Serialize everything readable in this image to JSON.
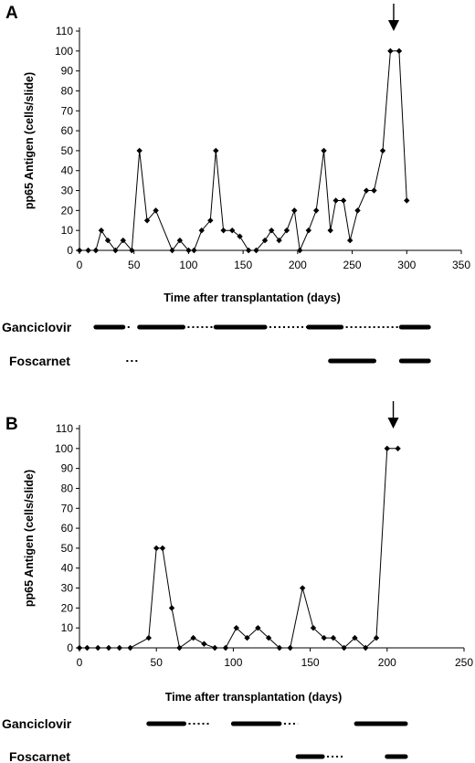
{
  "chart_data": [
    {
      "type": "line",
      "panel_label": "A",
      "xlabel": "Time after transplantation (days)",
      "ylabel": "pp65 Antigen  (cells/slide)",
      "xlim": [
        0,
        350
      ],
      "ylim": [
        0,
        110
      ],
      "x_ticks": [
        0,
        50,
        100,
        150,
        200,
        250,
        300,
        350
      ],
      "y_ticks": [
        0,
        10,
        20,
        30,
        40,
        50,
        60,
        70,
        80,
        90,
        100,
        110
      ],
      "series": [
        {
          "x": [
            0,
            8,
            15,
            20,
            26,
            33,
            40,
            48,
            55,
            62,
            70,
            85,
            92,
            100,
            105,
            112,
            120,
            125,
            132,
            140,
            147,
            155,
            162,
            170,
            176,
            183,
            190,
            197,
            202,
            210,
            217,
            224,
            230,
            235,
            242,
            248,
            255,
            263,
            270,
            278,
            285,
            293,
            300
          ],
          "values": [
            0,
            0,
            0,
            10,
            5,
            0,
            5,
            0,
            50,
            15,
            20,
            0,
            5,
            0,
            0,
            10,
            15,
            50,
            10,
            10,
            7,
            0,
            0,
            5,
            10,
            5,
            10,
            20,
            0,
            10,
            20,
            50,
            10,
            25,
            25,
            5,
            20,
            30,
            30,
            50,
            100,
            100,
            25
          ]
        }
      ],
      "arrow_at_x": 288,
      "treatment_axis": {
        "x0": 0,
        "x1": 350
      },
      "treatments": [
        {
          "drug": "Ganciclovir",
          "segments": [
            {
              "start": 15,
              "end": 40,
              "style": "solid"
            },
            {
              "start": 40,
              "end": 47,
              "style": "dotted"
            },
            {
              "start": 55,
              "end": 95,
              "style": "solid"
            },
            {
              "start": 95,
              "end": 125,
              "style": "dotted"
            },
            {
              "start": 125,
              "end": 170,
              "style": "solid"
            },
            {
              "start": 170,
              "end": 210,
              "style": "dotted"
            },
            {
              "start": 210,
              "end": 240,
              "style": "solid"
            },
            {
              "start": 240,
              "end": 295,
              "style": "dotted"
            },
            {
              "start": 295,
              "end": 320,
              "style": "solid"
            }
          ]
        },
        {
          "drug": "Foscarnet",
          "segments": [
            {
              "start": 43,
              "end": 53,
              "style": "dotted"
            },
            {
              "start": 230,
              "end": 270,
              "style": "solid"
            },
            {
              "start": 295,
              "end": 320,
              "style": "solid"
            }
          ]
        }
      ]
    },
    {
      "type": "line",
      "panel_label": "B",
      "xlabel": "Time after transplantation (days)",
      "ylabel": "pp65 Antigen  (cells/slide)",
      "xlim": [
        0,
        250
      ],
      "ylim": [
        0,
        110
      ],
      "x_ticks": [
        0,
        50,
        100,
        150,
        200,
        250
      ],
      "y_ticks": [
        0,
        10,
        20,
        30,
        40,
        50,
        60,
        70,
        80,
        90,
        100,
        110
      ],
      "series": [
        {
          "x": [
            0,
            5,
            12,
            19,
            26,
            33,
            45,
            50,
            54,
            60,
            65,
            74,
            81,
            88,
            95,
            102,
            109,
            116,
            123,
            130,
            137,
            145,
            152,
            159,
            165,
            172,
            179,
            186,
            193,
            200,
            207
          ],
          "values": [
            0,
            0,
            0,
            0,
            0,
            0,
            5,
            50,
            50,
            20,
            0,
            5,
            2,
            0,
            0,
            10,
            5,
            10,
            5,
            0,
            0,
            30,
            10,
            5,
            5,
            0,
            5,
            0,
            5,
            100,
            100
          ]
        }
      ],
      "arrow_at_x": 204,
      "treatment_axis": {
        "x0": 0,
        "x1": 250
      },
      "treatments": [
        {
          "drug": "Ganciclovir",
          "segments": [
            {
              "start": 45,
              "end": 68,
              "style": "solid"
            },
            {
              "start": 68,
              "end": 85,
              "style": "dotted"
            },
            {
              "start": 100,
              "end": 130,
              "style": "solid"
            },
            {
              "start": 130,
              "end": 142,
              "style": "dotted"
            },
            {
              "start": 180,
              "end": 212,
              "style": "solid"
            }
          ]
        },
        {
          "drug": "Foscarnet",
          "segments": [
            {
              "start": 142,
              "end": 158,
              "style": "solid"
            },
            {
              "start": 158,
              "end": 172,
              "style": "dotted"
            },
            {
              "start": 200,
              "end": 212,
              "style": "solid"
            }
          ]
        }
      ]
    }
  ]
}
